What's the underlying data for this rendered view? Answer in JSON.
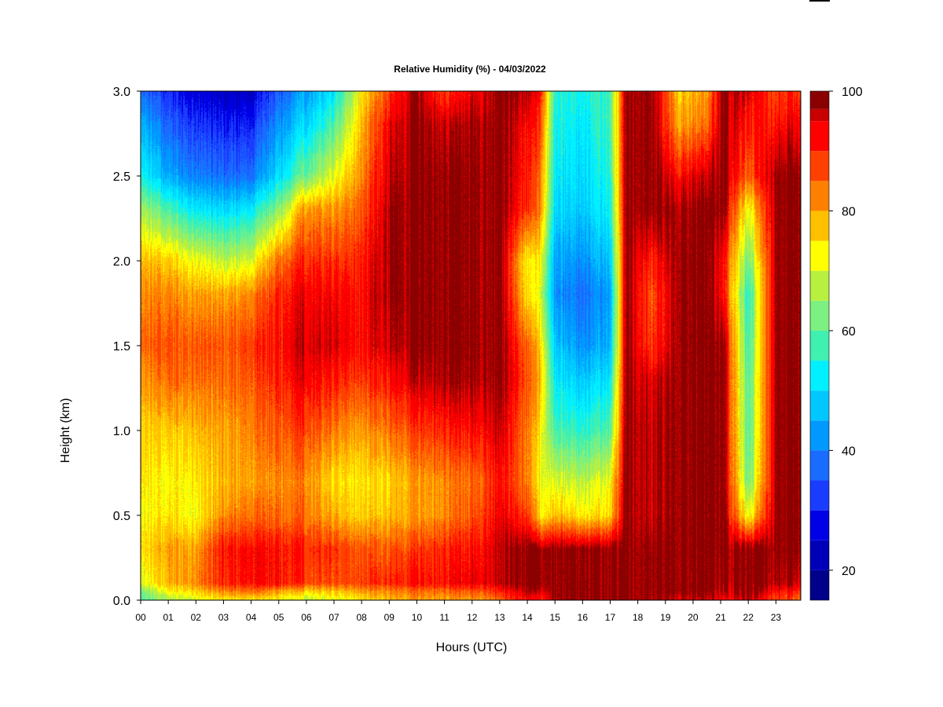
{
  "chart_data": {
    "type": "heatmap",
    "title": "Relative Humidity (%) - 04/03/2022",
    "xlabel": "Hours (UTC)",
    "ylabel": "Height (km)",
    "x_ticks": [
      "00",
      "01",
      "02",
      "03",
      "04",
      "05",
      "06",
      "07",
      "08",
      "09",
      "10",
      "11",
      "12",
      "13",
      "14",
      "15",
      "16",
      "17",
      "18",
      "19",
      "20",
      "21",
      "22",
      "23"
    ],
    "xlim": [
      0,
      23.9
    ],
    "ylim": [
      0,
      3.0
    ],
    "y_ticks": [
      "0.0",
      "0.5",
      "1.0",
      "1.5",
      "2.0",
      "2.5",
      "3.0"
    ],
    "y_tick_values": [
      0,
      0.5,
      1.0,
      1.5,
      2.0,
      2.5,
      3.0
    ],
    "colorbar": {
      "min": 15,
      "max": 100,
      "tick_labels": [
        "20",
        "40",
        "60",
        "80",
        "100"
      ],
      "tick_values": [
        20,
        40,
        60,
        80,
        100
      ],
      "bins": [
        {
          "from": 15,
          "to": 20,
          "color": "#00008b"
        },
        {
          "from": 20,
          "to": 25,
          "color": "#0000b8"
        },
        {
          "from": 25,
          "to": 30,
          "color": "#0000e6"
        },
        {
          "from": 30,
          "to": 35,
          "color": "#1a3cff"
        },
        {
          "from": 35,
          "to": 40,
          "color": "#1a6bff"
        },
        {
          "from": 40,
          "to": 45,
          "color": "#0099ff"
        },
        {
          "from": 45,
          "to": 50,
          "color": "#00c8ff"
        },
        {
          "from": 50,
          "to": 55,
          "color": "#00f0ff"
        },
        {
          "from": 55,
          "to": 60,
          "color": "#40f0b0"
        },
        {
          "from": 60,
          "to": 65,
          "color": "#7cf080"
        },
        {
          "from": 65,
          "to": 70,
          "color": "#b8f040"
        },
        {
          "from": 70,
          "to": 75,
          "color": "#ffff00"
        },
        {
          "from": 75,
          "to": 80,
          "color": "#ffc000"
        },
        {
          "from": 80,
          "to": 85,
          "color": "#ff8000"
        },
        {
          "from": 85,
          "to": 90,
          "color": "#ff4000"
        },
        {
          "from": 90,
          "to": 95,
          "color": "#ff0000"
        },
        {
          "from": 95,
          "to": 97,
          "color": "#c80000"
        },
        {
          "from": 97,
          "to": 100,
          "color": "#8b0000"
        }
      ]
    },
    "field_heights_km": [
      0.0,
      0.05,
      0.1,
      0.3,
      0.5,
      0.7,
      1.0,
      1.3,
      1.5,
      1.8,
      2.0,
      2.3,
      2.5,
      2.8,
      3.0
    ],
    "field_columns": [
      {
        "hour": 0.0,
        "rh": [
          58,
          62,
          70,
          74,
          72,
          74,
          76,
          80,
          84,
          82,
          78,
          66,
          54,
          46,
          38
        ]
      },
      {
        "hour": 1.0,
        "rh": [
          65,
          72,
          78,
          80,
          74,
          72,
          76,
          84,
          86,
          82,
          76,
          58,
          44,
          36,
          30
        ]
      },
      {
        "hour": 2.0,
        "rh": [
          70,
          76,
          82,
          80,
          72,
          74,
          78,
          84,
          86,
          80,
          72,
          52,
          40,
          32,
          26
        ]
      },
      {
        "hour": 3.0,
        "rh": [
          74,
          82,
          90,
          92,
          82,
          78,
          80,
          84,
          86,
          80,
          68,
          50,
          38,
          30,
          24
        ]
      },
      {
        "hour": 4.0,
        "rh": [
          74,
          84,
          92,
          92,
          84,
          80,
          82,
          86,
          88,
          82,
          70,
          52,
          38,
          30,
          24
        ]
      },
      {
        "hour": 5.0,
        "rh": [
          72,
          80,
          92,
          92,
          84,
          82,
          86,
          90,
          92,
          90,
          84,
          64,
          50,
          42,
          36
        ]
      },
      {
        "hour": 6.0,
        "rh": [
          68,
          76,
          88,
          90,
          84,
          82,
          88,
          94,
          96,
          94,
          90,
          82,
          62,
          50,
          44
        ]
      },
      {
        "hour": 7.0,
        "rh": [
          70,
          76,
          86,
          88,
          78,
          74,
          82,
          90,
          94,
          92,
          88,
          80,
          70,
          58,
          50
        ]
      },
      {
        "hour": 8.0,
        "rh": [
          74,
          80,
          88,
          86,
          76,
          74,
          80,
          88,
          92,
          92,
          90,
          86,
          82,
          78,
          74
        ]
      },
      {
        "hour": 9.0,
        "rh": [
          78,
          82,
          90,
          86,
          78,
          76,
          84,
          92,
          96,
          98,
          98,
          98,
          96,
          94,
          88
        ]
      },
      {
        "hour": 10.0,
        "rh": [
          80,
          84,
          92,
          88,
          80,
          80,
          88,
          96,
          99,
          99,
          99,
          99,
          99,
          99,
          98
        ]
      },
      {
        "hour": 11.0,
        "rh": [
          80,
          84,
          92,
          90,
          82,
          82,
          90,
          98,
          99,
          99,
          99,
          99,
          99,
          96,
          88
        ]
      },
      {
        "hour": 12.0,
        "rh": [
          80,
          86,
          94,
          92,
          86,
          84,
          92,
          98,
          99,
          99,
          99,
          99,
          99,
          98,
          94
        ]
      },
      {
        "hour": 13.0,
        "rh": [
          84,
          90,
          96,
          96,
          94,
          92,
          96,
          99,
          99,
          99,
          99,
          99,
          99,
          99,
          99
        ]
      },
      {
        "hour": 14.0,
        "rh": [
          92,
          96,
          99,
          99,
          88,
          82,
          82,
          86,
          84,
          74,
          72,
          88,
          90,
          92,
          96
        ]
      },
      {
        "hour": 14.5,
        "rh": [
          90,
          96,
          99,
          99,
          74,
          72,
          74,
          78,
          76,
          70,
          74,
          82,
          84,
          88,
          92
        ]
      },
      {
        "hour": 15.0,
        "rh": [
          98,
          99,
          99,
          99,
          78,
          70,
          58,
          52,
          48,
          42,
          44,
          50,
          52,
          54,
          56
        ]
      },
      {
        "hour": 16.0,
        "rh": [
          99,
          99,
          99,
          99,
          74,
          68,
          56,
          48,
          42,
          38,
          42,
          48,
          50,
          52,
          54
        ]
      },
      {
        "hour": 17.0,
        "rh": [
          99,
          99,
          99,
          99,
          76,
          72,
          60,
          52,
          46,
          44,
          48,
          54,
          56,
          58,
          58
        ]
      },
      {
        "hour": 17.6,
        "rh": [
          99,
          99,
          99,
          99,
          99,
          99,
          99,
          99,
          99,
          99,
          99,
          99,
          99,
          99,
          99
        ]
      },
      {
        "hour": 18.5,
        "rh": [
          98,
          99,
          99,
          99,
          96,
          96,
          96,
          94,
          88,
          86,
          90,
          99,
          99,
          99,
          99
        ]
      },
      {
        "hour": 19.5,
        "rh": [
          96,
          99,
          99,
          99,
          99,
          99,
          99,
          99,
          99,
          99,
          99,
          98,
          92,
          80,
          76
        ]
      },
      {
        "hour": 20.5,
        "rh": [
          96,
          99,
          99,
          99,
          99,
          99,
          99,
          99,
          99,
          99,
          99,
          99,
          96,
          84,
          80
        ]
      },
      {
        "hour": 21.1,
        "rh": [
          92,
          96,
          98,
          99,
          99,
          99,
          99,
          99,
          99,
          92,
          92,
          99,
          99,
          99,
          99
        ]
      },
      {
        "hour": 22.0,
        "rh": [
          96,
          99,
          99,
          99,
          70,
          60,
          58,
          58,
          56,
          54,
          60,
          70,
          84,
          90,
          94
        ]
      },
      {
        "hour": 23.0,
        "rh": [
          88,
          92,
          98,
          99,
          99,
          99,
          99,
          99,
          99,
          99,
          99,
          99,
          99,
          92,
          88
        ]
      },
      {
        "hour": 23.9,
        "rh": [
          84,
          90,
          96,
          99,
          99,
          99,
          99,
          99,
          99,
          99,
          99,
          99,
          99,
          94,
          90
        ]
      }
    ]
  }
}
